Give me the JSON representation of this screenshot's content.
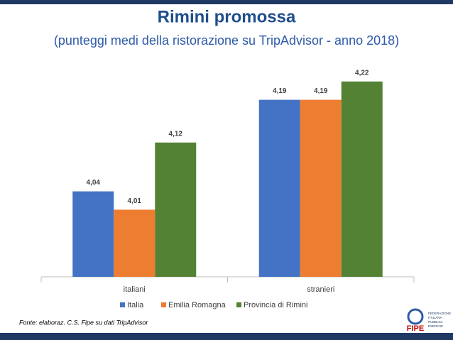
{
  "chart_data": {
    "type": "bar",
    "title": "Rimini promossa",
    "subtitle": "(punteggi medi della ristorazione su TripAdvisor - anno 2018)",
    "categories": [
      "italiani",
      "stranieri"
    ],
    "series": [
      {
        "name": "Italia",
        "color": "#4472c4",
        "values": [
          4.04,
          4.19
        ],
        "value_labels": [
          "4,04",
          "4,19"
        ]
      },
      {
        "name": "Emilia Romagna",
        "color": "#ed7d31",
        "values": [
          4.01,
          4.19
        ],
        "value_labels": [
          "4,01",
          "4,19"
        ]
      },
      {
        "name": "Provincia di Rimini",
        "color": "#548235",
        "values": [
          4.12,
          4.22
        ],
        "value_labels": [
          "4,12",
          "4,22"
        ]
      }
    ],
    "ylim": [
      3.9,
      4.25
    ],
    "source": "Fonte: elaboraz. C.S. Fipe su dati TripAdvisor"
  },
  "logo": {
    "name": "FIPE",
    "text": [
      "FEDERAZIONE",
      "ITALIANA",
      "PUBBLICI",
      "ESERCIZI"
    ]
  }
}
